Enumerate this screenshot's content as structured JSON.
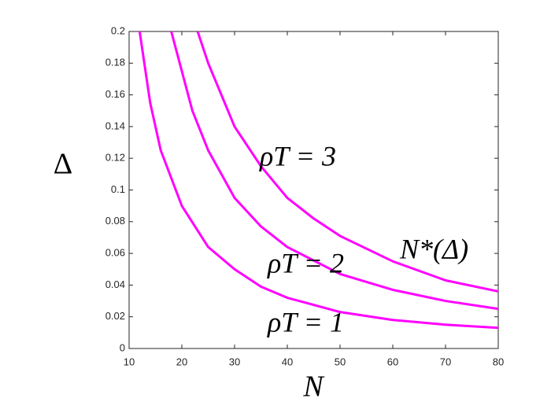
{
  "chart_data": {
    "type": "line",
    "xlabel": "N",
    "ylabel": "Δ",
    "xlim": [
      10,
      80
    ],
    "ylim": [
      0,
      0.2
    ],
    "xticks": [
      10,
      20,
      30,
      40,
      50,
      60,
      70,
      80
    ],
    "yticks": [
      0,
      0.02,
      0.04,
      0.06,
      0.08,
      0.1,
      0.12,
      0.14,
      0.16,
      0.18,
      0.2
    ],
    "series": [
      {
        "name": "ρT = 1",
        "color": "#ff00ff",
        "x": [
          12,
          14,
          16,
          20,
          25,
          30,
          35,
          40,
          50,
          60,
          70,
          80
        ],
        "values": [
          0.2,
          0.155,
          0.125,
          0.09,
          0.064,
          0.05,
          0.039,
          0.032,
          0.023,
          0.018,
          0.015,
          0.013
        ]
      },
      {
        "name": "ρT = 2",
        "color": "#ff00ff",
        "x": [
          18,
          20,
          22,
          25,
          30,
          35,
          40,
          50,
          60,
          70,
          80
        ],
        "values": [
          0.2,
          0.175,
          0.15,
          0.125,
          0.095,
          0.077,
          0.064,
          0.047,
          0.037,
          0.03,
          0.025
        ]
      },
      {
        "name": "ρT = 3",
        "color": "#ff00ff",
        "x": [
          23,
          25,
          30,
          35,
          40,
          45,
          50,
          60,
          70,
          80
        ],
        "values": [
          0.2,
          0.18,
          0.14,
          0.115,
          0.095,
          0.082,
          0.071,
          0.055,
          0.043,
          0.036
        ]
      }
    ],
    "annotations": [
      "N*(Δ)"
    ]
  }
}
